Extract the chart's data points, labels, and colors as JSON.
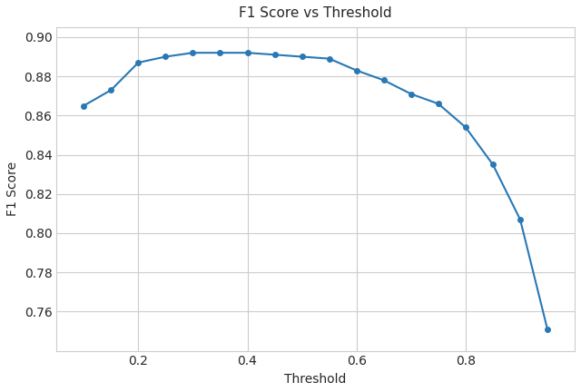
{
  "title": "F1 Score vs Threshold",
  "xlabel": "Threshold",
  "ylabel": "F1 Score",
  "x": [
    0.1,
    0.15,
    0.2,
    0.25,
    0.3,
    0.35,
    0.4,
    0.45,
    0.5,
    0.55,
    0.6,
    0.65,
    0.7,
    0.75,
    0.8,
    0.85,
    0.9,
    0.95
  ],
  "y": [
    0.865,
    0.873,
    0.887,
    0.89,
    0.892,
    0.892,
    0.892,
    0.891,
    0.89,
    0.889,
    0.883,
    0.878,
    0.871,
    0.866,
    0.854,
    0.835,
    0.807,
    0.751
  ],
  "line_color": "#2878b5",
  "marker": "o",
  "marker_size": 4,
  "line_width": 1.5,
  "ylim": [
    0.74,
    0.905
  ],
  "xlim": [
    0.05,
    1.0
  ],
  "xticks": [
    0.2,
    0.4,
    0.6,
    0.8
  ],
  "yticks": [
    0.76,
    0.78,
    0.8,
    0.82,
    0.84,
    0.86,
    0.88,
    0.9
  ],
  "grid": true,
  "background_color": "#ffffff",
  "axes_facecolor": "#ffffff",
  "grid_color": "#b0b0b0",
  "title_fontsize": 11,
  "label_fontsize": 10,
  "tick_fontsize": 10
}
